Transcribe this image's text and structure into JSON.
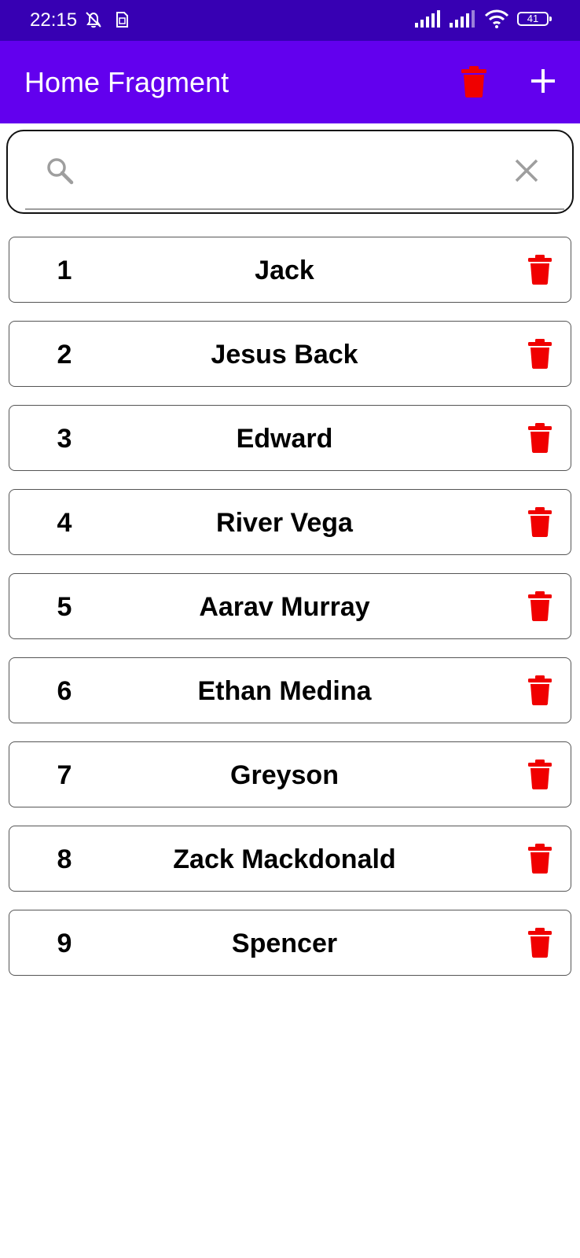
{
  "status_bar": {
    "time": "22:15",
    "battery": "41",
    "icons": [
      "muted-bell-icon",
      "sim-icon",
      "signal-icon",
      "signal-icon",
      "wifi-icon",
      "battery-icon"
    ]
  },
  "app_bar": {
    "title": "Home Fragment",
    "delete_icon": "trash-icon",
    "add_icon": "plus-icon"
  },
  "search": {
    "value": "",
    "placeholder": "",
    "search_icon": "search-icon",
    "clear_icon": "close-icon"
  },
  "colors": {
    "status_bar": "#3700B3",
    "app_bar": "#6200EE",
    "delete_red": "#F00000"
  },
  "list": {
    "items": [
      {
        "id": "1",
        "name": "Jack"
      },
      {
        "id": "2",
        "name": "Jesus Back"
      },
      {
        "id": "3",
        "name": "Edward"
      },
      {
        "id": "4",
        "name": "River Vega"
      },
      {
        "id": "5",
        "name": "Aarav Murray"
      },
      {
        "id": "6",
        "name": "Ethan Medina"
      },
      {
        "id": "7",
        "name": "Greyson"
      },
      {
        "id": "8",
        "name": "Zack Mackdonald"
      },
      {
        "id": "9",
        "name": "Spencer"
      }
    ]
  }
}
